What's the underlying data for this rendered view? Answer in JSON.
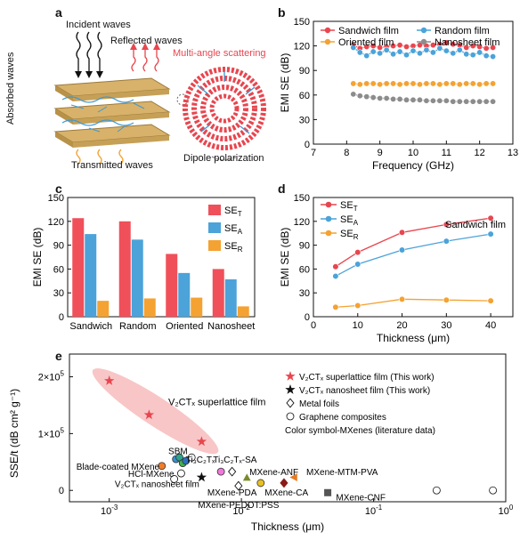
{
  "panel_labels": {
    "a": "a",
    "b": "b",
    "c": "c",
    "d": "d",
    "e": "e"
  },
  "schematic": {
    "incident": "Incident waves",
    "reflected": "Reflected waves",
    "absorbed": "Absorbed waves",
    "multi_angle": "Multi-angle scattering",
    "transmitted": "Transmitted waves",
    "dipole": "Dipole polarization"
  },
  "colors": {
    "sandwich": "#e8464f",
    "random": "#4ba3d9",
    "oriented": "#f4a232",
    "nanosheet": "#8c8c8c",
    "highlight": "#f6b3b3"
  },
  "chart_data": [
    {
      "id": "b",
      "type": "line",
      "xlabel": "Frequency (GHz)",
      "ylabel": "EMI SE (dB)",
      "xlim": [
        7,
        13
      ],
      "ylim": [
        0,
        150
      ],
      "xticks": [
        7,
        8,
        9,
        10,
        11,
        12,
        13
      ],
      "yticks": [
        0,
        30,
        60,
        90,
        120,
        150
      ],
      "legend": "top",
      "series": [
        {
          "name": "Sandwich film",
          "color": "#e8464f",
          "x": [
            8.2,
            8.4,
            8.6,
            8.8,
            9.0,
            9.2,
            9.4,
            9.6,
            9.8,
            10.0,
            10.2,
            10.4,
            10.6,
            10.8,
            11.0,
            11.2,
            11.4,
            11.6,
            11.8,
            12.0,
            12.2,
            12.4
          ],
          "y": [
            121,
            117,
            119,
            120,
            118,
            119,
            120,
            121,
            119,
            120,
            121,
            120,
            121,
            122,
            124,
            122,
            121,
            118,
            120,
            119,
            117,
            118
          ]
        },
        {
          "name": "Random film",
          "color": "#4ba3d9",
          "x": [
            8.2,
            8.4,
            8.6,
            8.8,
            9.0,
            9.2,
            9.4,
            9.6,
            9.8,
            10.0,
            10.2,
            10.4,
            10.6,
            10.8,
            11.0,
            11.2,
            11.4,
            11.6,
            11.8,
            12.0,
            12.2,
            12.4
          ],
          "y": [
            118,
            112,
            108,
            113,
            111,
            115,
            110,
            113,
            109,
            114,
            111,
            115,
            112,
            117,
            114,
            111,
            115,
            110,
            109,
            112,
            108,
            107
          ]
        },
        {
          "name": "Oriented film",
          "color": "#f4a232",
          "x": [
            8.2,
            8.4,
            8.6,
            8.8,
            9.0,
            9.2,
            9.4,
            9.6,
            9.8,
            10.0,
            10.2,
            10.4,
            10.6,
            10.8,
            11.0,
            11.2,
            11.4,
            11.6,
            11.8,
            12.0,
            12.2,
            12.4
          ],
          "y": [
            74,
            73,
            74,
            74,
            73,
            74,
            74,
            73,
            74,
            74,
            73,
            74,
            74,
            73,
            74,
            74,
            73,
            74,
            74,
            73,
            74,
            74
          ]
        },
        {
          "name": "Nanosheet film",
          "color": "#8c8c8c",
          "x": [
            8.2,
            8.4,
            8.6,
            8.8,
            9.0,
            9.2,
            9.4,
            9.6,
            9.8,
            10.0,
            10.2,
            10.4,
            10.6,
            10.8,
            11.0,
            11.2,
            11.4,
            11.6,
            11.8,
            12.0,
            12.2,
            12.4
          ],
          "y": [
            61,
            59,
            58,
            57,
            56,
            56,
            55,
            55,
            54,
            54,
            54,
            53,
            53,
            53,
            53,
            52,
            52,
            52,
            52,
            52,
            52,
            52
          ]
        }
      ]
    },
    {
      "id": "c",
      "type": "bar",
      "xlabel": "",
      "ylabel": "EMI SE (dB)",
      "ylim": [
        0,
        150
      ],
      "yticks": [
        0,
        30,
        60,
        90,
        120,
        150
      ],
      "legend": "top-right",
      "categories": [
        "Sandwich",
        "Random",
        "Oriented",
        "Nanosheet"
      ],
      "series": [
        {
          "name": "SE",
          "sub": "T",
          "color": "#f0505a",
          "values": [
            124,
            120,
            79,
            60
          ]
        },
        {
          "name": "SE",
          "sub": "A",
          "color": "#4ba3d9",
          "values": [
            104,
            97,
            55,
            47
          ]
        },
        {
          "name": "SE",
          "sub": "R",
          "color": "#f4a232",
          "values": [
            20,
            23,
            24,
            13
          ]
        }
      ]
    },
    {
      "id": "d",
      "type": "line",
      "xlabel": "Thickness (μm)",
      "ylabel": "EMI SE (dB)",
      "xlim": [
        0,
        45
      ],
      "ylim": [
        0,
        150
      ],
      "xticks": [
        0,
        10,
        20,
        30,
        40
      ],
      "yticks": [
        0,
        30,
        60,
        90,
        120,
        150
      ],
      "annotation": "Sandwich film",
      "legend": "top-left",
      "series": [
        {
          "name": "SE",
          "sub": "T",
          "color": "#e8464f",
          "x": [
            5,
            10,
            20,
            30,
            40
          ],
          "y": [
            63,
            81,
            106,
            116,
            124
          ]
        },
        {
          "name": "SE",
          "sub": "A",
          "color": "#4ba3d9",
          "x": [
            5,
            10,
            20,
            30,
            40
          ],
          "y": [
            51,
            66,
            84,
            95,
            104
          ]
        },
        {
          "name": "SE",
          "sub": "R",
          "color": "#f4a232",
          "x": [
            5,
            10,
            20,
            30,
            40
          ],
          "y": [
            12,
            14,
            22,
            21,
            20
          ]
        }
      ]
    },
    {
      "id": "e",
      "type": "scatter",
      "xlabel": "Thickness (μm)",
      "ylabel": "SSE/t (dB cm² g⁻¹)",
      "xscale": "log",
      "xlim": [
        0.0005,
        1
      ],
      "ylim": [
        -20000,
        240000
      ],
      "xtick_exps": [
        -3,
        -2,
        -1,
        0
      ],
      "xtick_labels": [
        "10",
        "10",
        "10",
        "10"
      ],
      "xtick_sups": [
        "-3",
        "-2",
        "-1",
        "0"
      ],
      "yticks": [
        0,
        100000,
        200000
      ],
      "ytick_labels": [
        "0",
        "1×10",
        "2×10"
      ],
      "ytick_sups": [
        "",
        "5",
        "5"
      ],
      "highlight_label": "V₂CTₓ superlattice film",
      "legend": [
        {
          "marker": "star",
          "color": "#e8464f",
          "text": "V₂CTₓ superlattice film (This work)"
        },
        {
          "marker": "star",
          "color": "#111111",
          "text": "V₂CTₓ nanosheet film (This work)"
        },
        {
          "marker": "diamond-open",
          "color": "#111111",
          "text": "Metal foils"
        },
        {
          "marker": "circle-open",
          "color": "#111111",
          "text": "Graphene composites"
        },
        {
          "marker": "none",
          "color": "#111111",
          "text": "Color symbol-MXenes (literature data)"
        }
      ],
      "points": [
        {
          "x": 0.001,
          "y": 193000,
          "marker": "star",
          "color": "#e8464f"
        },
        {
          "x": 0.002,
          "y": 133000,
          "marker": "star",
          "color": "#e8464f"
        },
        {
          "x": 0.005,
          "y": 86000,
          "marker": "star",
          "color": "#e8464f"
        },
        {
          "x": 0.005,
          "y": 23000,
          "marker": "star",
          "color": "#111111"
        },
        {
          "x": 0.0025,
          "y": 43000,
          "marker": "circle",
          "color": "#f07d2a"
        },
        {
          "x": 0.0032,
          "y": 55000,
          "marker": "circle",
          "color": "#3a8fd0"
        },
        {
          "x": 0.0034,
          "y": 58000,
          "marker": "circle",
          "color": "#2ca58d"
        },
        {
          "x": 0.0036,
          "y": 48000,
          "marker": "circle",
          "color": "#3fb34f"
        },
        {
          "x": 0.0038,
          "y": 52000,
          "marker": "circle",
          "color": "#2f6fbf"
        },
        {
          "x": 0.0035,
          "y": 30000,
          "marker": "circle-open",
          "color": "#111111"
        },
        {
          "x": 0.0031,
          "y": 20000,
          "marker": "circle-open",
          "color": "#111111"
        },
        {
          "x": 0.0042,
          "y": 58000,
          "marker": "circle-open",
          "color": "#111111"
        },
        {
          "x": 0.007,
          "y": 33000,
          "marker": "circle",
          "color": "#f078d8"
        },
        {
          "x": 0.0085,
          "y": 33000,
          "marker": "diamond-open",
          "color": "#111111"
        },
        {
          "x": 0.0095,
          "y": 8000,
          "marker": "diamond-open",
          "color": "#111111"
        },
        {
          "x": 0.011,
          "y": 22000,
          "marker": "triangle",
          "color": "#7a8a2a"
        },
        {
          "x": 0.014,
          "y": 13000,
          "marker": "circle",
          "color": "#e8c020"
        },
        {
          "x": 0.021,
          "y": 13000,
          "marker": "diamond",
          "color": "#8b1a1a"
        },
        {
          "x": 0.025,
          "y": 23000,
          "marker": "triangle-left",
          "color": "#e87a20"
        },
        {
          "x": 0.045,
          "y": -4000,
          "marker": "square",
          "color": "#555555"
        },
        {
          "x": 0.3,
          "y": 0,
          "marker": "circle-open",
          "color": "#111111"
        },
        {
          "x": 0.8,
          "y": 0,
          "marker": "circle-open",
          "color": "#111111"
        }
      ],
      "labels": [
        {
          "text": "SBM",
          "x": 0.0028,
          "y": 70000
        },
        {
          "text": "Blade-coated MXene",
          "x": 0.0024,
          "y": 43000,
          "anchor": "end"
        },
        {
          "text": "Ti₃C₂Tₓ",
          "x": 0.0038,
          "y": 55000
        },
        {
          "text": "Ti₃C₂Tₓ-SA",
          "x": 0.0061,
          "y": 55000
        },
        {
          "text": "HCl-MXene",
          "x": 0.0031,
          "y": 30000,
          "anchor": "end"
        },
        {
          "text": "V₂CTₓ nanosheet film",
          "x": 0.0048,
          "y": 12000,
          "anchor": "end"
        },
        {
          "text": "MXene-PDA",
          "x": 0.0085,
          "y": -3000,
          "anchor": "middle"
        },
        {
          "text": "MXene-PEDOT:PSS",
          "x": 0.0095,
          "y": -25000,
          "anchor": "middle"
        },
        {
          "text": "MXene-ANF",
          "x": 0.0115,
          "y": 33000
        },
        {
          "text": "MXene-CA",
          "x": 0.015,
          "y": -3000
        },
        {
          "text": "MXene-MTM-PVA",
          "x": 0.031,
          "y": 33000
        },
        {
          "text": "MXene-CNF",
          "x": 0.052,
          "y": -11000
        }
      ]
    }
  ]
}
